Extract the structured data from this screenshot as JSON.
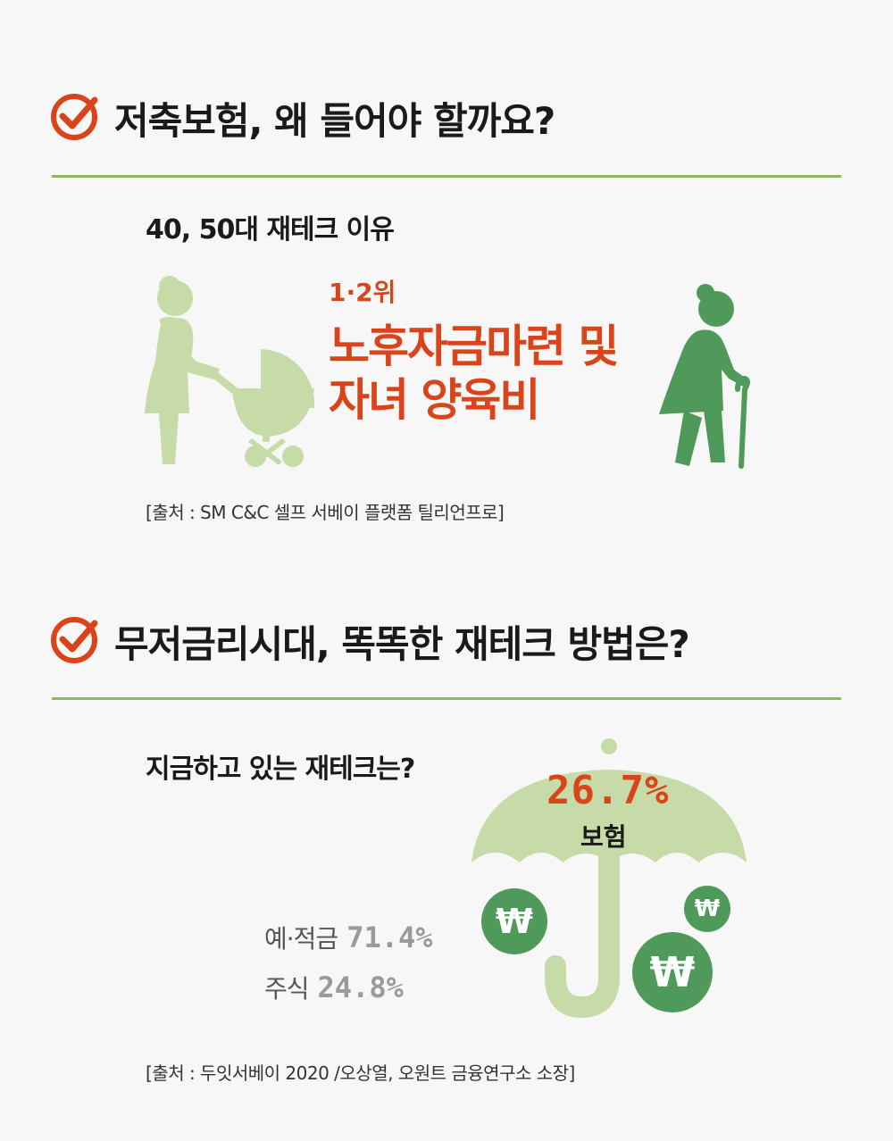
{
  "section1": {
    "title": "저축보험, 왜 들어야 할까요?",
    "subtitle": "40, 50대 재테크 이유",
    "rank": "1·2위",
    "highlight_line1": "노후자금마련 및",
    "highlight_line2": "자녀 양육비",
    "source": "[출처 : SM C&C 셀프 서베이 플랫폼 틸리언프로]"
  },
  "section2": {
    "title": "무저금리시대, 똑똑한 재테크 방법은?",
    "subtitle": "지금하고 있는 재테크는?",
    "main_stat": {
      "value": "26.7%",
      "label": "보험"
    },
    "stats": [
      {
        "label": "예·적금",
        "value": "71.4%"
      },
      {
        "label": "주식",
        "value": "24.8%"
      }
    ],
    "coin_symbol": "₩",
    "source": "[출처 : 두잇서베이 2020 /오상열, 오원트 금융연구소 소장]"
  },
  "colors": {
    "accent_orange": "#d9441b",
    "light_green": "#c6dba8",
    "dark_green": "#4f9a5a",
    "divider_green": "#8db863"
  }
}
